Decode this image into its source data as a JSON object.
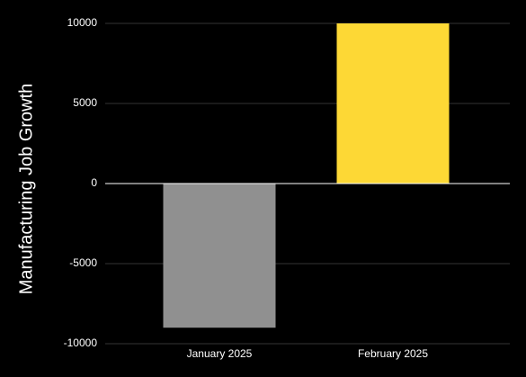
{
  "chart_data": {
    "type": "bar",
    "y_label": "Manufacturing Job Growth",
    "categories": [
      "January 2025",
      "February 2025"
    ],
    "values": [
      -9000,
      10000
    ],
    "colors": [
      "#909090",
      "#fdd835"
    ],
    "ylim": [
      -10000,
      10000
    ],
    "yticks": [
      -10000,
      -5000,
      0,
      5000,
      10000
    ],
    "grid": true
  }
}
